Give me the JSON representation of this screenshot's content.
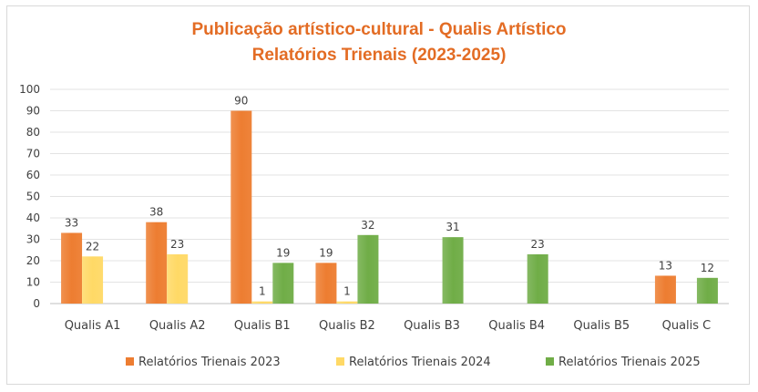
{
  "chart_data": {
    "type": "bar",
    "title": "Publicação artístico-cultural - Qualis Artístico",
    "subtitle": "Relatórios Trienais (2023-2025)",
    "categories": [
      "Qualis A1",
      "Qualis A2",
      "Qualis B1",
      "Qualis B2",
      "Qualis B3",
      "Qualis B4",
      "Qualis B5",
      "Qualis C"
    ],
    "series": [
      {
        "name": "Relatórios Trienais 2023",
        "values": [
          33,
          38,
          90,
          19,
          null,
          null,
          null,
          13
        ],
        "color": "#ed7d31"
      },
      {
        "name": "Relatórios Trienais 2024",
        "values": [
          22,
          23,
          1,
          1,
          null,
          null,
          null,
          null
        ],
        "color": "#ffd966"
      },
      {
        "name": "Relatórios Trienais 2025",
        "values": [
          null,
          null,
          19,
          32,
          31,
          23,
          null,
          12
        ],
        "color": "#70ad47"
      }
    ],
    "ylim": [
      0,
      100
    ],
    "yticks": [
      0,
      10,
      20,
      30,
      40,
      50,
      60,
      70,
      80,
      90,
      100
    ],
    "grid": true,
    "legend_position": "bottom"
  }
}
